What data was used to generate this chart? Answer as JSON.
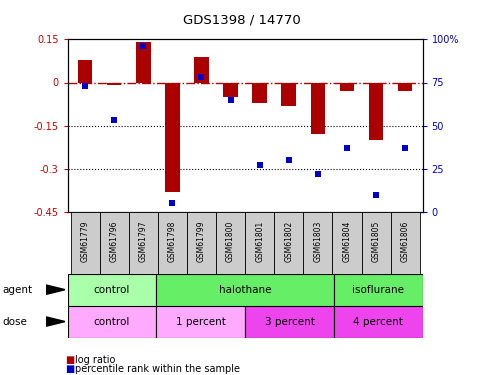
{
  "title": "GDS1398 / 14770",
  "samples": [
    "GSM61779",
    "GSM61796",
    "GSM61797",
    "GSM61798",
    "GSM61799",
    "GSM61800",
    "GSM61801",
    "GSM61802",
    "GSM61803",
    "GSM61804",
    "GSM61805",
    "GSM61806"
  ],
  "log_ratio": [
    0.08,
    -0.01,
    0.14,
    -0.38,
    0.09,
    -0.05,
    -0.07,
    -0.08,
    -0.18,
    -0.03,
    -0.2,
    -0.03
  ],
  "percentile_rank": [
    73,
    53,
    96,
    5,
    78,
    65,
    27,
    30,
    22,
    37,
    10,
    37
  ],
  "ylim_left": [
    -0.45,
    0.15
  ],
  "ylim_right": [
    0,
    100
  ],
  "yticks_left": [
    0.15,
    0,
    -0.15,
    -0.3,
    -0.45
  ],
  "yticks_right": [
    100,
    75,
    50,
    25,
    0
  ],
  "hlines": [
    -0.15,
    -0.3
  ],
  "bar_color": "#AA0000",
  "scatter_color": "#0000CC",
  "bar_width": 0.5,
  "agent_groups": [
    {
      "label": "control",
      "start": 0,
      "end": 3,
      "color": "#AAFFAA"
    },
    {
      "label": "halothane",
      "start": 3,
      "end": 9,
      "color": "#66EE66"
    },
    {
      "label": "isoflurane",
      "start": 9,
      "end": 12,
      "color": "#66EE66"
    }
  ],
  "dose_groups": [
    {
      "label": "control",
      "start": 0,
      "end": 3,
      "color": "#FFAAFF"
    },
    {
      "label": "1 percent",
      "start": 3,
      "end": 6,
      "color": "#FFAAFF"
    },
    {
      "label": "3 percent",
      "start": 6,
      "end": 9,
      "color": "#EE44EE"
    },
    {
      "label": "4 percent",
      "start": 9,
      "end": 12,
      "color": "#EE44EE"
    }
  ],
  "legend_bar_label": "log ratio",
  "legend_scatter_label": "percentile rank within the sample",
  "tick_label_color_left": "#CC0000",
  "tick_label_color_right": "#0000CC",
  "background_color": "#ffffff",
  "label_bg": "#CCCCCC"
}
